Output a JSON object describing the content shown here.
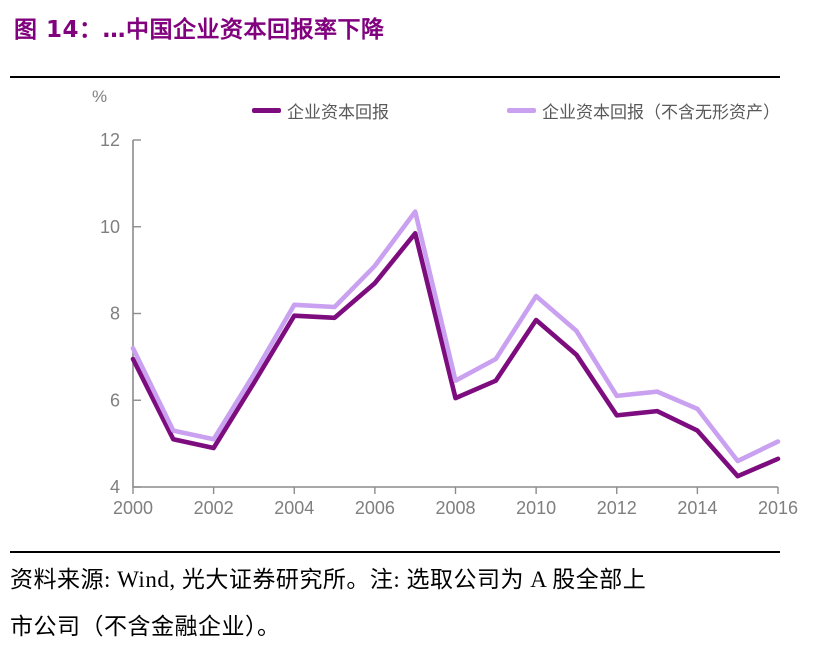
{
  "header": {
    "title": "图 14：…中国企业资本回报率下降"
  },
  "chart": {
    "y_unit_label": "%"
  },
  "chart_data": {
    "type": "line",
    "title": "图 14：…中国企业资本回报率下降",
    "x": [
      2000,
      2001,
      2002,
      2003,
      2004,
      2005,
      2006,
      2007,
      2008,
      2009,
      2010,
      2011,
      2012,
      2013,
      2014,
      2015,
      2016
    ],
    "series": [
      {
        "name": "企业资本回报",
        "color": "#7D0C7E",
        "values": [
          6.95,
          5.1,
          4.9,
          6.4,
          7.95,
          7.9,
          8.7,
          9.85,
          6.05,
          6.45,
          7.85,
          7.05,
          5.65,
          5.75,
          5.3,
          4.25,
          4.65
        ]
      },
      {
        "name": "企业资本回报（不含无形资产）",
        "color": "#C9A1F0",
        "values": [
          7.2,
          5.3,
          5.1,
          6.6,
          8.2,
          8.15,
          9.1,
          10.35,
          6.45,
          6.95,
          8.4,
          7.6,
          6.1,
          6.2,
          5.8,
          4.6,
          5.05
        ]
      }
    ],
    "xlabel": "",
    "ylabel": "%",
    "ylim": [
      4,
      12
    ],
    "xlim": [
      2000,
      2016
    ],
    "yticks": [
      4,
      6,
      8,
      10,
      12
    ],
    "xticks": [
      2000,
      2002,
      2004,
      2006,
      2008,
      2010,
      2012,
      2014,
      2016
    ],
    "grid": false,
    "legend_position": "top"
  },
  "footer": {
    "source_line1": "资料来源: Wind, 光大证券研究所。注: 选取公司为 A 股全部上",
    "source_line2": "市公司（不含金融企业）。"
  }
}
